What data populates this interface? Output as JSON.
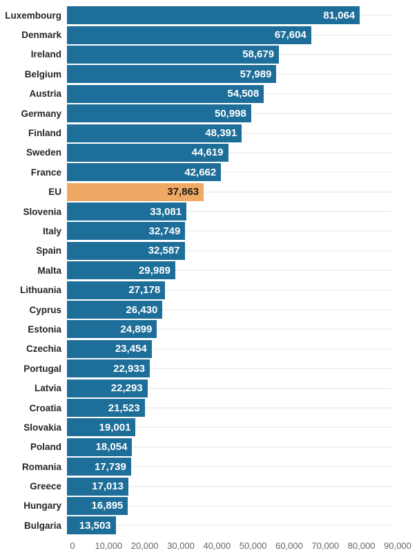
{
  "chart_data": {
    "type": "bar",
    "orientation": "horizontal",
    "title": "",
    "xlabel": "",
    "ylabel": "",
    "xlim": [
      0,
      90000
    ],
    "grid": "category-lines",
    "legend": "none",
    "categories": [
      "Luxembourg",
      "Denmark",
      "Ireland",
      "Belgium",
      "Austria",
      "Germany",
      "Finland",
      "Sweden",
      "France",
      "EU",
      "Slovenia",
      "Italy",
      "Spain",
      "Malta",
      "Lithuania",
      "Cyprus",
      "Estonia",
      "Czechia",
      "Portugal",
      "Latvia",
      "Croatia",
      "Slovakia",
      "Poland",
      "Romania",
      "Greece",
      "Hungary",
      "Bulgaria"
    ],
    "values": [
      81064,
      67604,
      58679,
      57989,
      54508,
      50998,
      48391,
      44619,
      42662,
      37863,
      33081,
      32749,
      32587,
      29989,
      27178,
      26430,
      24899,
      23454,
      22933,
      22293,
      21523,
      19001,
      18054,
      17739,
      17013,
      16895,
      13503
    ],
    "value_labels": [
      "81,064",
      "67,604",
      "58,679",
      "57,989",
      "54,508",
      "50,998",
      "48,391",
      "44,619",
      "42,662",
      "37,863",
      "33,081",
      "32,749",
      "32,587",
      "29,989",
      "27,178",
      "26,430",
      "24,899",
      "23,454",
      "22,933",
      "22,293",
      "21,523",
      "19,001",
      "18,054",
      "17,739",
      "17,013",
      "16,895",
      "13,503"
    ],
    "highlight_category": "EU",
    "x_tick_labels": [
      "0",
      "10,000",
      "20,000",
      "30,000",
      "40,000",
      "50,000",
      "60,000",
      "70,000",
      "80,000",
      "90,000"
    ],
    "x_tick_values": [
      0,
      10000,
      20000,
      30000,
      40000,
      50000,
      60000,
      70000,
      80000,
      90000
    ],
    "colors": {
      "bar": "#1d6e99",
      "highlight_bar": "#f0a965",
      "value_text": "#ffffff",
      "highlight_value_text": "#1a1a1a",
      "category_text": "#252525",
      "axis_text": "#666666",
      "gridline": "#f2f2f2",
      "background": "#ffffff"
    }
  }
}
